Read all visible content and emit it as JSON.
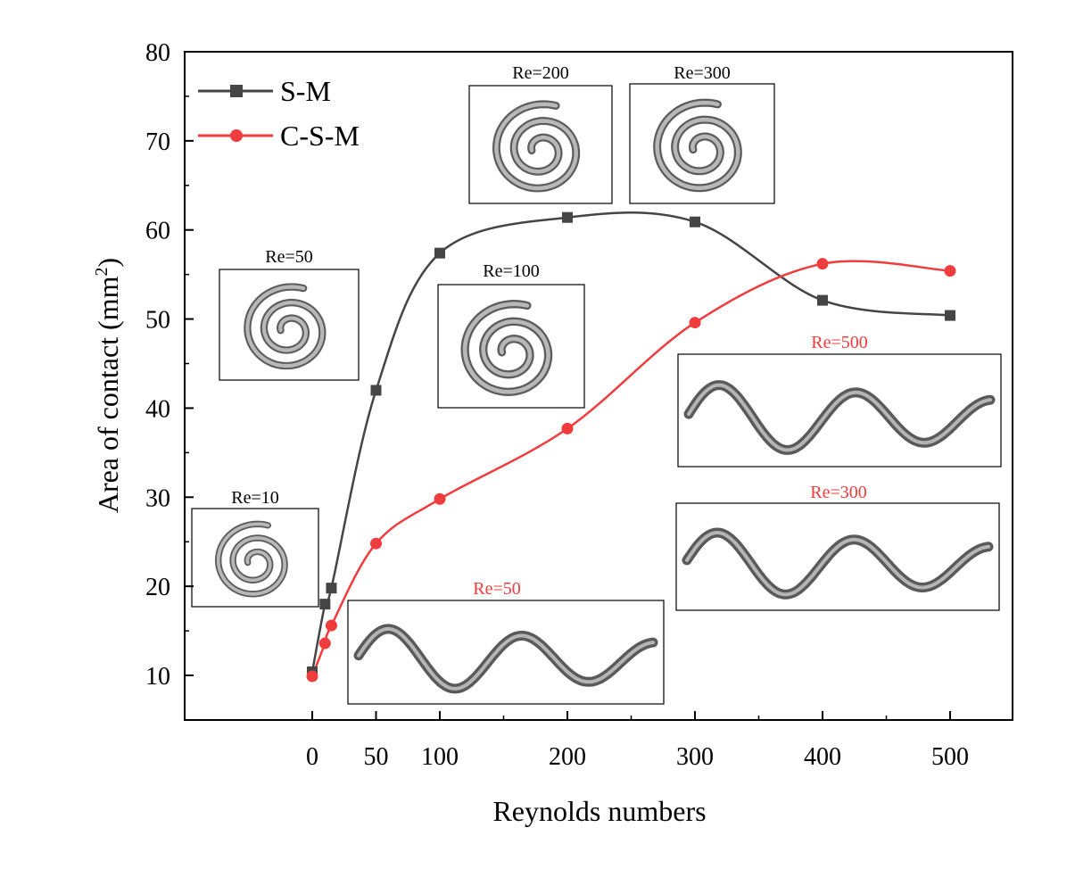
{
  "chart_data": {
    "type": "line",
    "xlabel": "Reynolds numbers",
    "ylabel": "Area of contact (mm",
    "ylabel_sup": "2",
    "ylabel_close": ")",
    "xlim": [
      -100,
      550
    ],
    "ylim": [
      5,
      80
    ],
    "x_ticks": [
      0,
      50,
      100,
      200,
      300,
      400,
      500
    ],
    "y_ticks": [
      10,
      20,
      30,
      40,
      50,
      60,
      70,
      80
    ],
    "legend_position": "top-left",
    "series": [
      {
        "name": "S-M",
        "color": "#454545",
        "marker": "square",
        "x": [
          0,
          10,
          15,
          50,
          100,
          200,
          300,
          400,
          500
        ],
        "y": [
          10.4,
          18.0,
          19.8,
          42.0,
          57.4,
          61.4,
          60.9,
          52.1,
          50.4
        ]
      },
      {
        "name": "C-S-M",
        "color": "#f03c3c",
        "marker": "circle",
        "x": [
          0,
          10,
          15,
          50,
          100,
          200,
          300,
          400,
          500
        ],
        "y": [
          9.9,
          13.6,
          15.6,
          24.8,
          29.8,
          37.7,
          49.6,
          56.2,
          55.4
        ]
      }
    ],
    "insets": [
      {
        "label": "Re=10",
        "shape": "spiral",
        "label_color": "#000000"
      },
      {
        "label": "Re=50",
        "shape": "spiral",
        "label_color": "#000000"
      },
      {
        "label": "Re=100",
        "shape": "spiral",
        "label_color": "#000000"
      },
      {
        "label": "Re=200",
        "shape": "spiral",
        "label_color": "#000000"
      },
      {
        "label": "Re=300",
        "shape": "spiral",
        "label_color": "#000000"
      },
      {
        "label": "Re=50",
        "shape": "serpentine",
        "label_color": "#f03c3c"
      },
      {
        "label": "Re=300",
        "shape": "serpentine",
        "label_color": "#f03c3c"
      },
      {
        "label": "Re=500",
        "shape": "serpentine",
        "label_color": "#f03c3c"
      }
    ]
  }
}
